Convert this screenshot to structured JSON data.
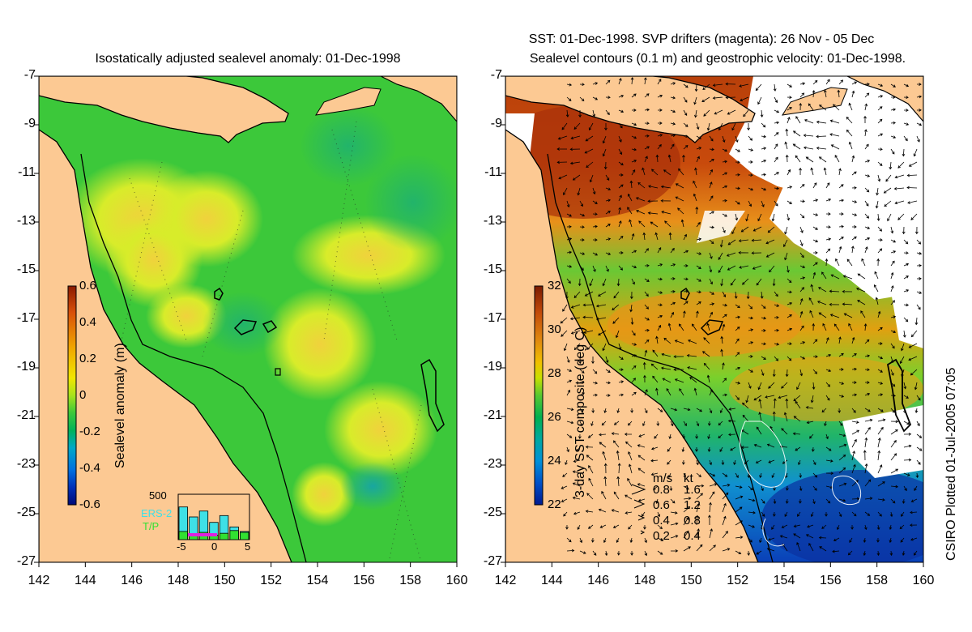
{
  "left_panel": {
    "title": "Isostatically adjusted sealevel anomaly: 01-Dec-1998",
    "colorbar": {
      "label": "Sealevel anomaly (m)",
      "ticks": [
        "0.6",
        "0.4",
        "0.2",
        "0",
        "-0.2",
        "-0.4",
        "-0.6"
      ],
      "colors": [
        "#8b1a00",
        "#d8500a",
        "#f0a500",
        "#f2e600",
        "#a8e21c",
        "#3cc83a",
        "#00b25a",
        "#00a8c8",
        "#0070e0",
        "#0030b8",
        "#000a78"
      ]
    },
    "histogram": {
      "ymax_label": "500",
      "x_ticks": [
        "-5",
        "0",
        "5"
      ],
      "legend": [
        "ERS-2",
        "T/P"
      ],
      "ers2_values": [
        0.72,
        0.5,
        0.63,
        0.38,
        0.53,
        0.28,
        0.18
      ],
      "tp_values": [
        0.18,
        0.12,
        0.16,
        0.1,
        0.14,
        0.2,
        0.16
      ],
      "ers2_color": "#3ee0e6",
      "tp_color": "#31e031"
    }
  },
  "right_panel": {
    "title_line1": "SST: 01-Dec-1998. SVP drifters (magenta): 26 Nov - 05 Dec",
    "title_line2": "Sealevel contours (0.1 m) and geostrophic velocity: 01-Dec-1998.",
    "colorbar": {
      "label": "3-day SST composite (deg C)",
      "ticks": [
        "32",
        "30",
        "28",
        "26",
        "24",
        "22"
      ],
      "colors": [
        "#7a1a00",
        "#c24a0a",
        "#e08a10",
        "#f0c000",
        "#c8e000",
        "#58c830",
        "#00b050",
        "#00a8a0",
        "#0090d8",
        "#0050c8",
        "#001a90"
      ]
    },
    "velocity_legend": {
      "header_ms": "m/s",
      "header_kt": "kt",
      "rows": [
        {
          "ms": "0.8",
          "kt": "1.6"
        },
        {
          "ms": "0.6",
          "kt": "1.2"
        },
        {
          "ms": "0.4",
          "kt": "0.8"
        },
        {
          "ms": "0.2",
          "kt": "0.4"
        }
      ]
    }
  },
  "axes": {
    "lat_labels": [
      "-7",
      "-9",
      "-11",
      "-13",
      "-15",
      "-17",
      "-19",
      "-21",
      "-23",
      "-25",
      "-27"
    ],
    "lon_labels": [
      "142",
      "144",
      "146",
      "148",
      "150",
      "152",
      "154",
      "156",
      "158",
      "160"
    ]
  },
  "credit": "CSIRO Plotted 01-Jul-2005 07:05",
  "colors": {
    "land": "#fcc993",
    "ocean_green": "#3cc83a",
    "ocean_yellow": "#c6ea2a",
    "cloud": "#ffffff"
  }
}
